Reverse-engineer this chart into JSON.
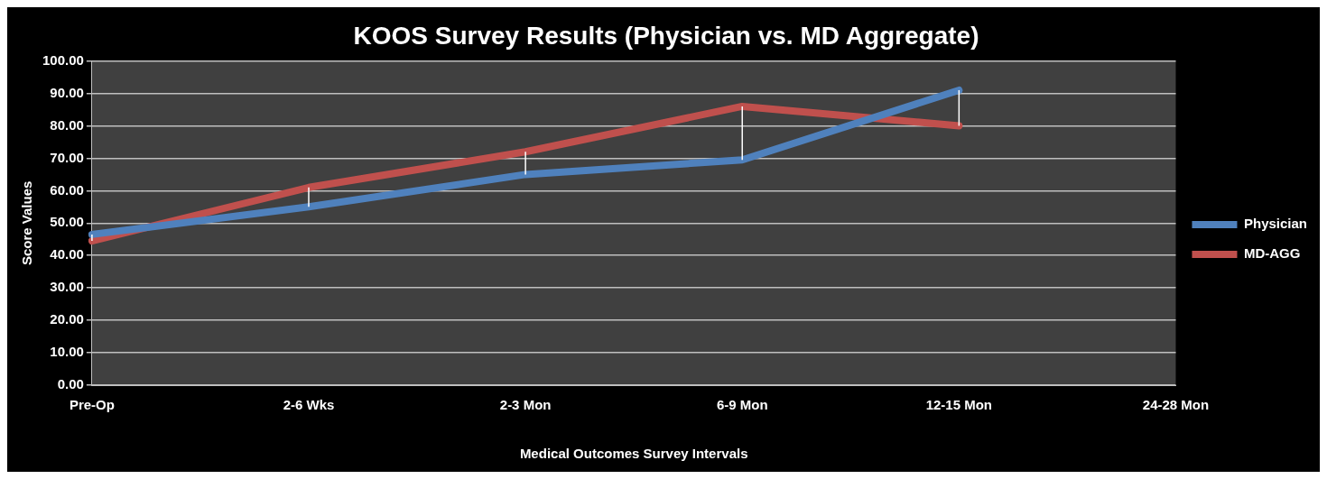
{
  "chart_data": {
    "type": "line",
    "title": "KOOS Survey Results (Physician vs. MD Aggregate)",
    "xlabel": "Medical Outcomes Survey Intervals",
    "ylabel": "Score Values",
    "categories": [
      "Pre-Op",
      "2-6 Wks",
      "2-3 Mon",
      "6-9 Mon",
      "12-15 Mon",
      "24-28 Mon"
    ],
    "series": [
      {
        "name": "Physician",
        "color": "#4f81bd",
        "values": [
          46.5,
          55,
          65,
          69.5,
          91,
          null
        ],
        "errors": [
          [
            44.5,
            46.5
          ],
          [
            55,
            61
          ],
          [
            65,
            72
          ],
          [
            69.5,
            86
          ],
          [
            80,
            91
          ],
          null
        ]
      },
      {
        "name": "MD-AGG",
        "color": "#c0504d",
        "values": [
          44.5,
          61,
          72,
          86,
          80,
          null
        ]
      }
    ],
    "ylim": [
      0,
      100
    ],
    "yticks": [
      {
        "value": 0,
        "label": "0.00"
      },
      {
        "value": 10,
        "label": "10.00"
      },
      {
        "value": 20,
        "label": "20.00"
      },
      {
        "value": 30,
        "label": "30.00"
      },
      {
        "value": 40,
        "label": "40.00"
      },
      {
        "value": 50,
        "label": "50.00"
      },
      {
        "value": 60,
        "label": "60.00"
      },
      {
        "value": 70,
        "label": "70.00"
      },
      {
        "value": 80,
        "label": "80.00"
      },
      {
        "value": 90,
        "label": "90.00"
      },
      {
        "value": 100,
        "label": "100.00"
      }
    ],
    "grid": "y",
    "legend": "right",
    "marker": "none",
    "line_style": "solid"
  }
}
